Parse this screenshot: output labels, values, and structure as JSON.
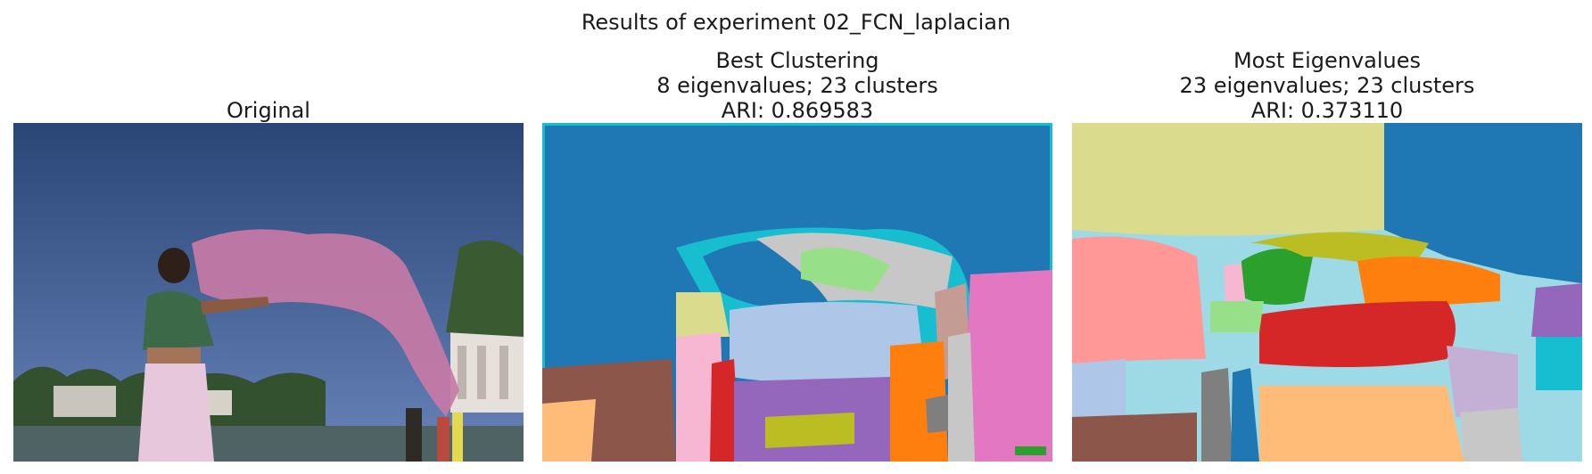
{
  "figure": {
    "suptitle": "Results of experiment 02_FCN_laplacian"
  },
  "panels": [
    {
      "id": "original",
      "title_lines": [
        "Original"
      ]
    },
    {
      "id": "best",
      "title_lines": [
        "Best Clustering",
        "8 eigenvalues; 23 clusters",
        "ARI: 0.869583"
      ]
    },
    {
      "id": "most",
      "title_lines": [
        "Most Eigenvalues",
        "23 eigenvalues; 23 clusters",
        "ARI: 0.373110"
      ]
    }
  ],
  "colors": {
    "sky_top": "#2c4a7a",
    "sky_bottom": "#5d7bb0",
    "scarf": "#c77aa6",
    "skirt": "#e7c7dc",
    "blouse": "#3c6a48",
    "tab_blue": "#1f77b4",
    "tab_orange": "#ff7f0e",
    "tab_green": "#2ca02c",
    "tab_red": "#d62728",
    "tab_purple": "#9467bd",
    "tab_brown": "#8c564b",
    "tab_pink": "#e377c2",
    "tab_gray": "#7f7f7f",
    "tab_olive": "#bcbd22",
    "tab_cyan": "#17becf",
    "light_blue": "#aec7e8",
    "light_orange": "#ffbb78",
    "light_green": "#98df8a",
    "light_red": "#ff9896",
    "light_purple": "#c5b0d5",
    "light_pink": "#f7b6d2",
    "light_gray": "#c7c7c7",
    "light_olive": "#dbdb8d",
    "light_cyan": "#9edae5"
  }
}
